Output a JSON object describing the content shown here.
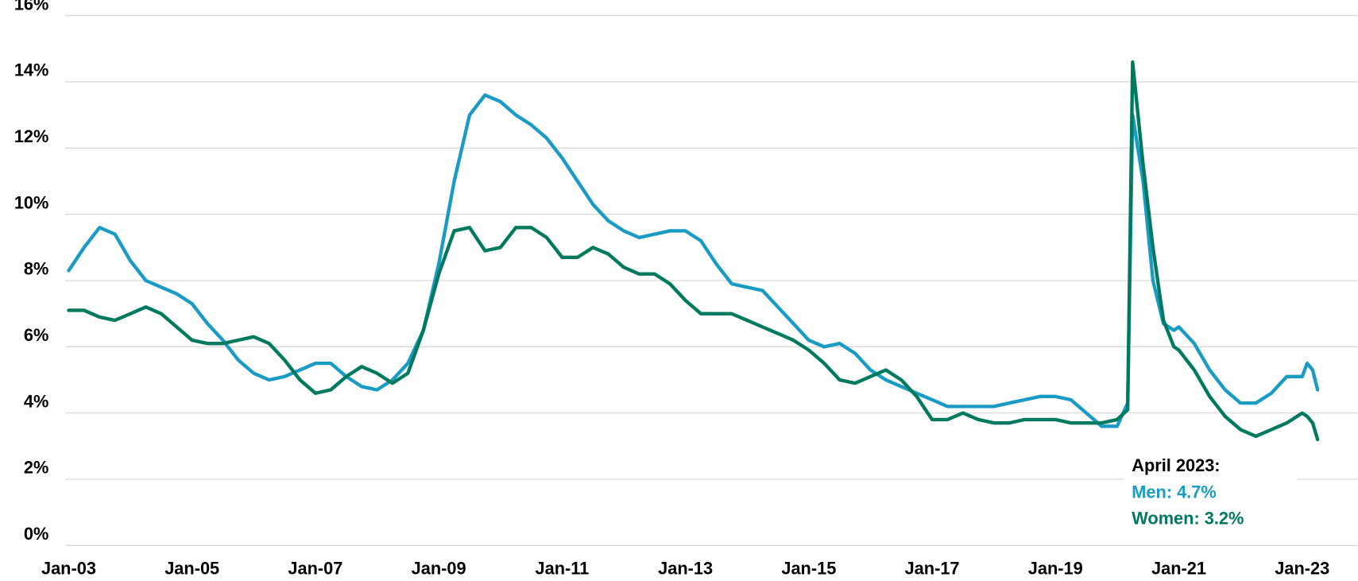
{
  "chart_data": {
    "type": "line",
    "x": [
      2003,
      2003.25,
      2003.5,
      2003.75,
      2004,
      2004.25,
      2004.5,
      2004.75,
      2005,
      2005.25,
      2005.5,
      2005.75,
      2006,
      2006.25,
      2006.5,
      2006.75,
      2007,
      2007.25,
      2007.5,
      2007.75,
      2008,
      2008.25,
      2008.5,
      2008.75,
      2009,
      2009.25,
      2009.5,
      2009.75,
      2010,
      2010.25,
      2010.5,
      2010.75,
      2011,
      2011.25,
      2011.5,
      2011.75,
      2012,
      2012.25,
      2012.5,
      2012.75,
      2013,
      2013.25,
      2013.5,
      2013.75,
      2014,
      2014.25,
      2014.5,
      2014.75,
      2015,
      2015.25,
      2015.5,
      2015.75,
      2016,
      2016.25,
      2016.5,
      2016.75,
      2017,
      2017.25,
      2017.5,
      2017.75,
      2018,
      2018.25,
      2018.5,
      2018.75,
      2019,
      2019.25,
      2019.5,
      2019.75,
      2020,
      2020.17,
      2020.25,
      2020.42,
      2020.58,
      2020.75,
      2020.92,
      2021,
      2021.25,
      2021.5,
      2021.75,
      2022,
      2022.25,
      2022.5,
      2022.75,
      2023,
      2023.08,
      2023.17,
      2023.25
    ],
    "series": [
      {
        "name": "Men",
        "color": "#1a9bc4",
        "values": [
          8.3,
          9.0,
          9.6,
          9.4,
          8.6,
          8.0,
          7.8,
          7.6,
          7.3,
          6.7,
          6.2,
          5.6,
          5.2,
          5.0,
          5.1,
          5.3,
          5.5,
          5.5,
          5.1,
          4.8,
          4.7,
          5.0,
          5.5,
          6.5,
          8.5,
          11.0,
          13.0,
          13.6,
          13.4,
          13.0,
          12.7,
          12.3,
          11.7,
          11.0,
          10.3,
          9.8,
          9.5,
          9.3,
          9.4,
          9.5,
          9.5,
          9.2,
          8.5,
          7.9,
          7.8,
          7.7,
          7.2,
          6.7,
          6.2,
          6.0,
          6.1,
          5.8,
          5.3,
          5.0,
          4.8,
          4.6,
          4.4,
          4.2,
          4.2,
          4.2,
          4.2,
          4.3,
          4.4,
          4.5,
          4.5,
          4.4,
          4.0,
          3.6,
          3.6,
          4.3,
          13.0,
          11.0,
          8.0,
          6.7,
          6.5,
          6.6,
          6.1,
          5.3,
          4.7,
          4.3,
          4.3,
          4.6,
          5.1,
          5.1,
          5.5,
          5.3,
          4.7
        ]
      },
      {
        "name": "Women",
        "color": "#007a5e",
        "values": [
          7.1,
          7.1,
          6.9,
          6.8,
          7.0,
          7.2,
          7.0,
          6.6,
          6.2,
          6.1,
          6.1,
          6.2,
          6.3,
          6.1,
          5.6,
          5.0,
          4.6,
          4.7,
          5.1,
          5.4,
          5.2,
          4.9,
          5.2,
          6.5,
          8.2,
          9.5,
          9.6,
          8.9,
          9.0,
          9.6,
          9.6,
          9.3,
          8.7,
          8.7,
          9.0,
          8.8,
          8.4,
          8.2,
          8.2,
          7.9,
          7.4,
          7.0,
          7.0,
          7.0,
          6.8,
          6.6,
          6.4,
          6.2,
          5.9,
          5.5,
          5.0,
          4.9,
          5.1,
          5.3,
          5.0,
          4.5,
          3.8,
          3.8,
          4.0,
          3.8,
          3.7,
          3.7,
          3.8,
          3.8,
          3.8,
          3.7,
          3.7,
          3.7,
          3.8,
          4.1,
          14.6,
          11.5,
          9.0,
          6.8,
          6.0,
          5.9,
          5.3,
          4.5,
          3.9,
          3.5,
          3.3,
          3.5,
          3.7,
          4.0,
          3.9,
          3.7,
          3.2
        ]
      }
    ],
    "xlim": [
      2003,
      2023.9
    ],
    "xticks": [
      {
        "value": 2003,
        "label": "Jan-03"
      },
      {
        "value": 2005,
        "label": "Jan-05"
      },
      {
        "value": 2007,
        "label": "Jan-07"
      },
      {
        "value": 2009,
        "label": "Jan-09"
      },
      {
        "value": 2011,
        "label": "Jan-11"
      },
      {
        "value": 2013,
        "label": "Jan-13"
      },
      {
        "value": 2015,
        "label": "Jan-15"
      },
      {
        "value": 2017,
        "label": "Jan-17"
      },
      {
        "value": 2019,
        "label": "Jan-19"
      },
      {
        "value": 2021,
        "label": "Jan-21"
      },
      {
        "value": 2023,
        "label": "Jan-23"
      }
    ],
    "ylim": [
      0,
      16
    ],
    "yticks": [
      {
        "value": 0,
        "label": "0%"
      },
      {
        "value": 2,
        "label": "2%"
      },
      {
        "value": 4,
        "label": "4%"
      },
      {
        "value": 6,
        "label": "6%"
      },
      {
        "value": 8,
        "label": "8%"
      },
      {
        "value": 10,
        "label": "10%"
      },
      {
        "value": 12,
        "label": "12%"
      },
      {
        "value": 14,
        "label": "14%"
      },
      {
        "value": 16,
        "label": "16%"
      }
    ],
    "grid": true,
    "annotations": [
      "April 2023:",
      "Men: 4.7%",
      "Women: 3.2%"
    ]
  }
}
